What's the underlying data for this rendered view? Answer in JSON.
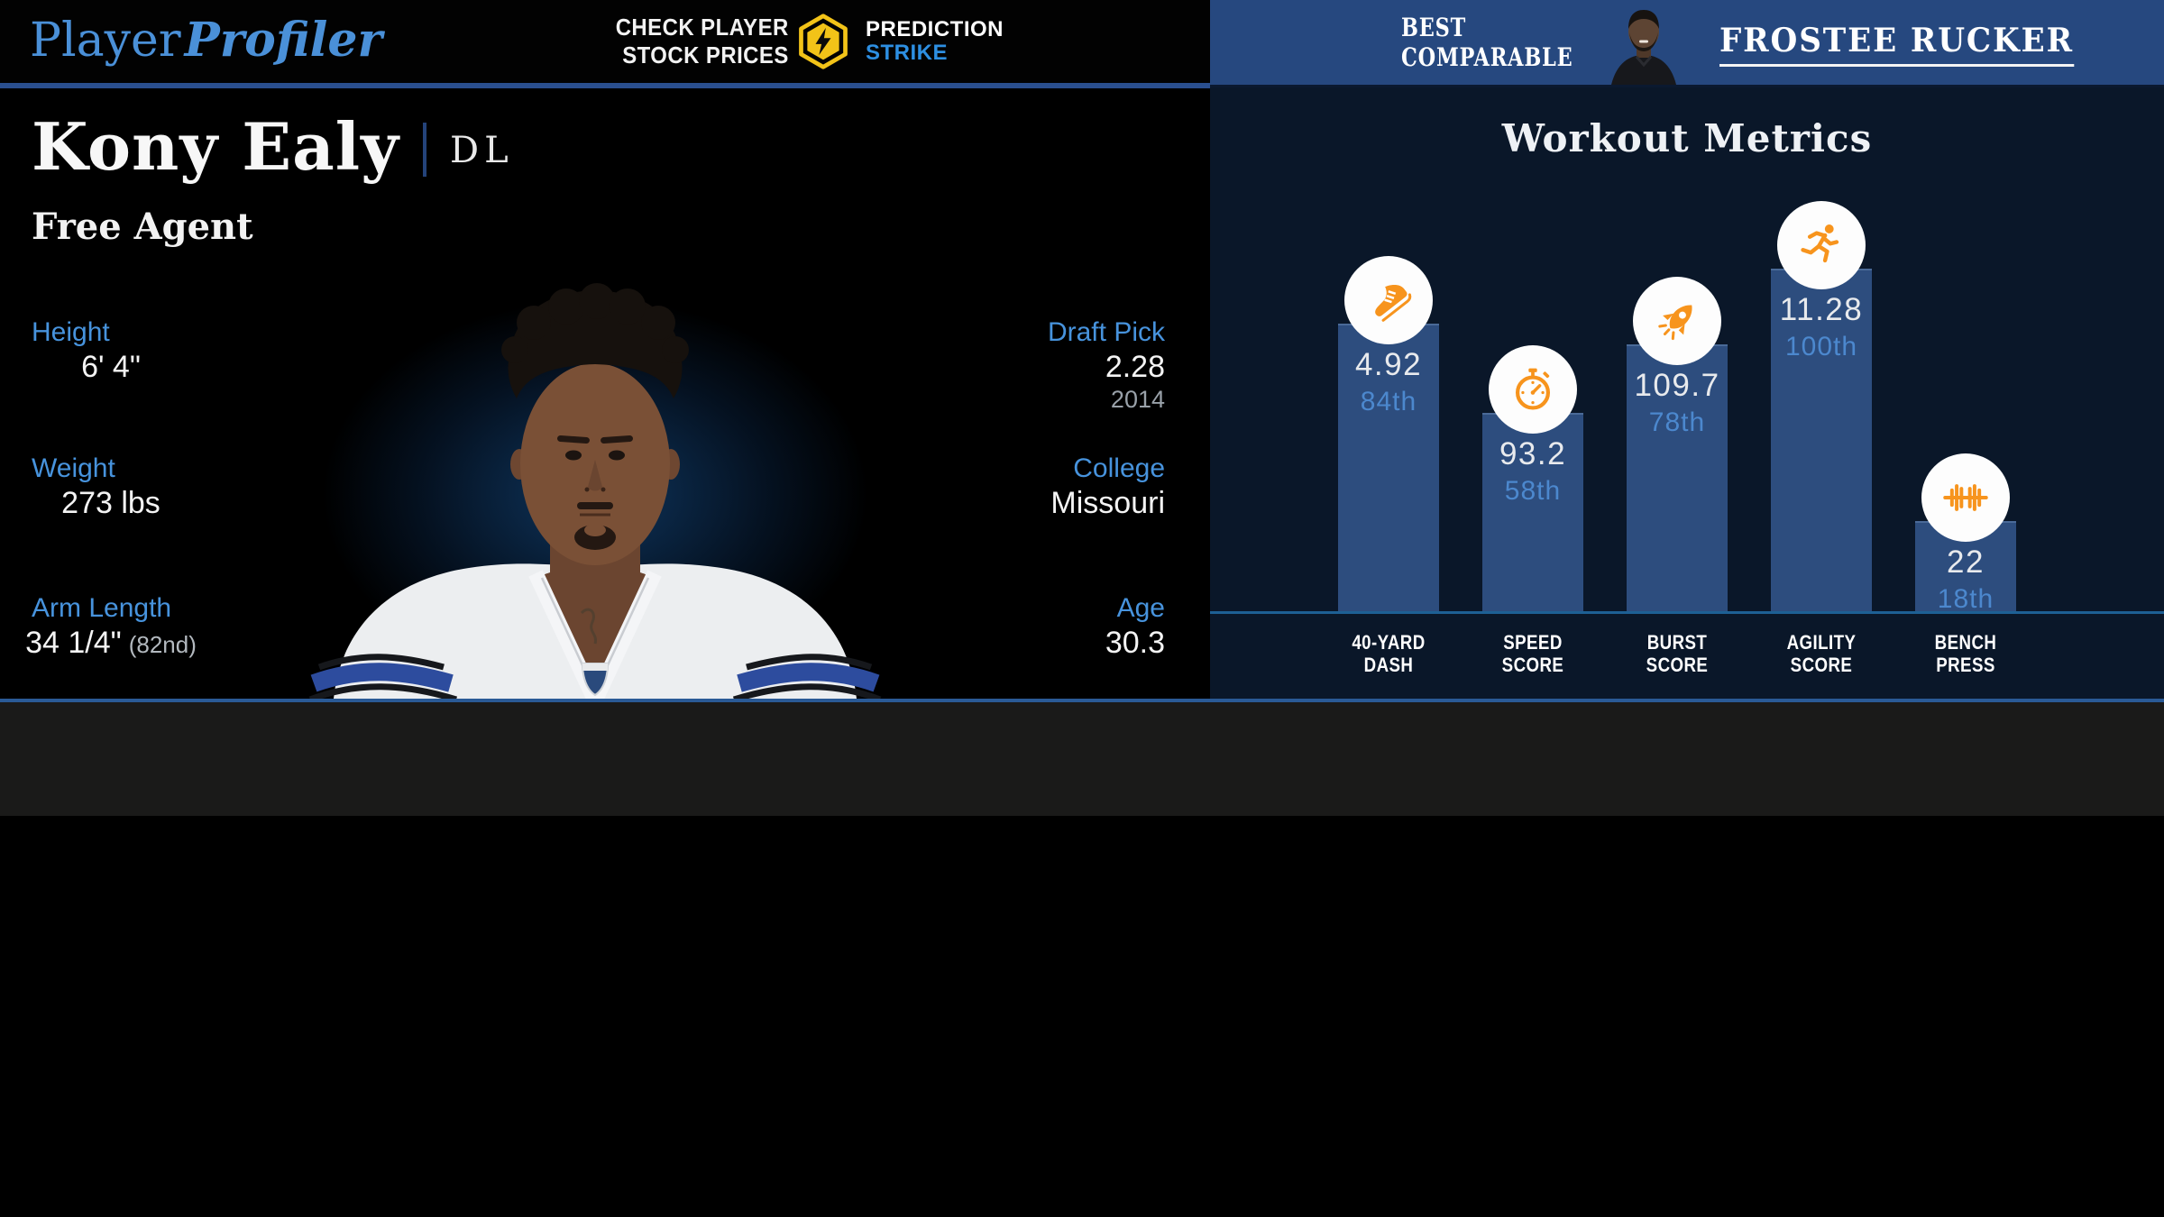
{
  "brand": {
    "name_light": "Player",
    "name_bold": "Profiler"
  },
  "top_bar": {
    "stock_line1": "CHECK PLAYER",
    "stock_line2": "STOCK PRICES",
    "prediction_label": "PREDICTION",
    "strike_label": "STRIKE"
  },
  "comparable": {
    "label_line1": "BEST",
    "label_line2": "COMPARABLE",
    "player_name": "FROSTEE RUCKER"
  },
  "player": {
    "name": "Kony Ealy",
    "position": "DL",
    "status": "Free Agent",
    "stats_left": [
      {
        "label": "Height",
        "value": "6' 4\""
      },
      {
        "label": "Weight",
        "value": "273 lbs"
      },
      {
        "label": "Arm Length",
        "value": "34 1/4\"",
        "note": "(82nd)"
      }
    ],
    "stats_right": [
      {
        "label": "Draft Pick",
        "value": "2.28",
        "note": "2014"
      },
      {
        "label": "College",
        "value": "Missouri"
      },
      {
        "label": "Age",
        "value": "30.3"
      }
    ]
  },
  "chart_data": {
    "type": "bar",
    "title": "Workout Metrics",
    "categories": [
      "40-Yard Dash",
      "Speed Score",
      "Burst Score",
      "Agility Score",
      "Bench Press"
    ],
    "series": [
      {
        "name": "Value",
        "values": [
          4.92,
          93.2,
          109.7,
          11.28,
          22
        ]
      },
      {
        "name": "Percentile",
        "values": [
          84,
          58,
          78,
          100,
          18
        ]
      }
    ],
    "xlabel": "",
    "ylabel": "",
    "grid": false,
    "legend_position": "none",
    "metrics": [
      {
        "label_line1": "40-YARD",
        "label_line2": "DASH",
        "value": "4.92",
        "percentile_label": "84th",
        "percentile": 84,
        "icon": "shoe-icon"
      },
      {
        "label_line1": "SPEED",
        "label_line2": "SCORE",
        "value": "93.2",
        "percentile_label": "58th",
        "percentile": 58,
        "icon": "stopwatch-icon"
      },
      {
        "label_line1": "BURST",
        "label_line2": "SCORE",
        "value": "109.7",
        "percentile_label": "78th",
        "percentile": 78,
        "icon": "rocket-icon"
      },
      {
        "label_line1": "AGILITY",
        "label_line2": "SCORE",
        "value": "11.28",
        "percentile_label": "100th",
        "percentile": 100,
        "icon": "runner-icon"
      },
      {
        "label_line1": "BENCH",
        "label_line2": "PRESS",
        "value": "22",
        "percentile_label": "18th",
        "percentile": 18,
        "icon": "barbell-icon"
      }
    ]
  },
  "colors": {
    "accent_blue": "#4793dd",
    "logo_blue": "#4a90d8",
    "header_blue": "#26487f",
    "panel_navy": "#0a1729",
    "bar_blue": "#2d4d7e",
    "percentile_blue": "#4c88ce",
    "axis_blue": "#1d6094",
    "icon_orange": "#f7941d",
    "strike_blue": "#2d8fe2",
    "badge_gold": "#f2c318",
    "gray_strip": "#1a1a19"
  }
}
